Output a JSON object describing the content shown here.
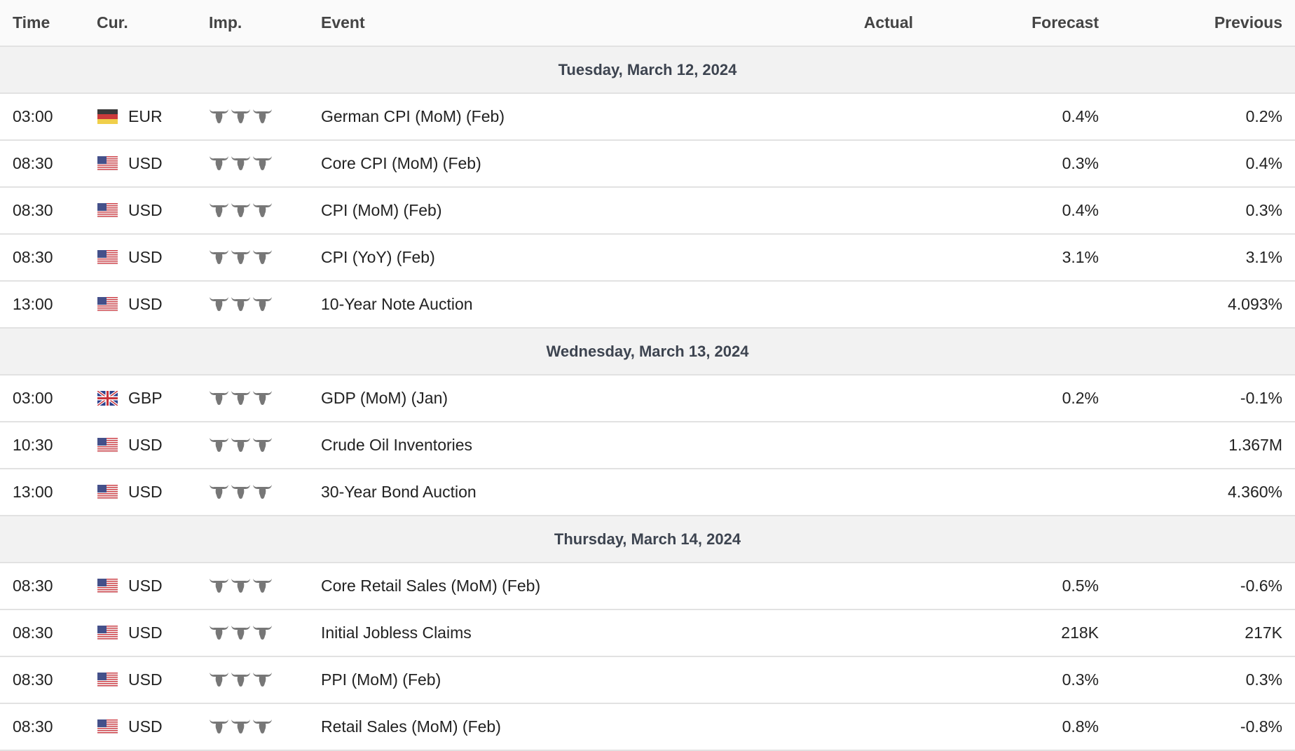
{
  "header": {
    "time": "Time",
    "cur": "Cur.",
    "imp": "Imp.",
    "event": "Event",
    "actual": "Actual",
    "forecast": "Forecast",
    "previous": "Previous"
  },
  "colors": {
    "bull_icon": "#777777",
    "date_row_bg": "#f2f2f2"
  },
  "groups": [
    {
      "date": "Tuesday, March 12, 2024",
      "events": [
        {
          "time": "03:00",
          "flag": "de",
          "currency": "EUR",
          "importance": 3,
          "event": "German CPI (MoM) (Feb)",
          "actual": "",
          "forecast": "0.4%",
          "previous": "0.2%"
        },
        {
          "time": "08:30",
          "flag": "us",
          "currency": "USD",
          "importance": 3,
          "event": "Core CPI (MoM) (Feb)",
          "actual": "",
          "forecast": "0.3%",
          "previous": "0.4%"
        },
        {
          "time": "08:30",
          "flag": "us",
          "currency": "USD",
          "importance": 3,
          "event": "CPI (MoM) (Feb)",
          "actual": "",
          "forecast": "0.4%",
          "previous": "0.3%"
        },
        {
          "time": "08:30",
          "flag": "us",
          "currency": "USD",
          "importance": 3,
          "event": "CPI (YoY) (Feb)",
          "actual": "",
          "forecast": "3.1%",
          "previous": "3.1%"
        },
        {
          "time": "13:00",
          "flag": "us",
          "currency": "USD",
          "importance": 3,
          "event": "10-Year Note Auction",
          "actual": "",
          "forecast": "",
          "previous": "4.093%"
        }
      ]
    },
    {
      "date": "Wednesday, March 13, 2024",
      "events": [
        {
          "time": "03:00",
          "flag": "gb",
          "currency": "GBP",
          "importance": 3,
          "event": "GDP (MoM) (Jan)",
          "actual": "",
          "forecast": "0.2%",
          "previous": "-0.1%"
        },
        {
          "time": "10:30",
          "flag": "us",
          "currency": "USD",
          "importance": 3,
          "event": "Crude Oil Inventories",
          "actual": "",
          "forecast": "",
          "previous": "1.367M"
        },
        {
          "time": "13:00",
          "flag": "us",
          "currency": "USD",
          "importance": 3,
          "event": "30-Year Bond Auction",
          "actual": "",
          "forecast": "",
          "previous": "4.360%"
        }
      ]
    },
    {
      "date": "Thursday, March 14, 2024",
      "events": [
        {
          "time": "08:30",
          "flag": "us",
          "currency": "USD",
          "importance": 3,
          "event": "Core Retail Sales (MoM) (Feb)",
          "actual": "",
          "forecast": "0.5%",
          "previous": "-0.6%"
        },
        {
          "time": "08:30",
          "flag": "us",
          "currency": "USD",
          "importance": 3,
          "event": "Initial Jobless Claims",
          "actual": "",
          "forecast": "218K",
          "previous": "217K"
        },
        {
          "time": "08:30",
          "flag": "us",
          "currency": "USD",
          "importance": 3,
          "event": "PPI (MoM) (Feb)",
          "actual": "",
          "forecast": "0.3%",
          "previous": "0.3%"
        },
        {
          "time": "08:30",
          "flag": "us",
          "currency": "USD",
          "importance": 3,
          "event": "Retail Sales (MoM) (Feb)",
          "actual": "",
          "forecast": "0.8%",
          "previous": "-0.8%"
        }
      ]
    }
  ]
}
